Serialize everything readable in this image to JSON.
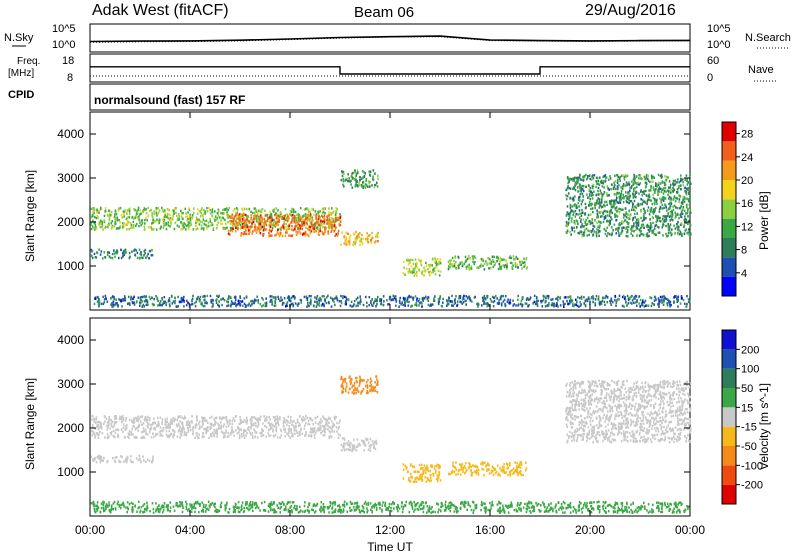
{
  "header": {
    "site": "Adak West (fitACF)",
    "beam": "Beam 06",
    "date": "29/Aug/2016"
  },
  "sky_panel": {
    "left_label": "N.Sky",
    "right_label": "N.Search",
    "left_ticks": [
      "10^5",
      "10^0"
    ],
    "right_ticks": [
      "10^5",
      "10^0"
    ]
  },
  "freq_panel": {
    "left_label_line1": "Freq.",
    "left_label_line2": "[MHz]",
    "right_label": "Nave",
    "left_ticks": [
      "18",
      "8"
    ],
    "right_ticks": [
      "60",
      "0"
    ]
  },
  "cpid": {
    "label": "CPID",
    "value": "normalsound (fast) 157 RF"
  },
  "x_axis": {
    "label": "Time UT",
    "ticks": [
      "00:00",
      "04:00",
      "08:00",
      "12:00",
      "16:00",
      "20:00",
      "00:00"
    ]
  },
  "colors": {
    "power": [
      "#0000ff",
      "#1f4fb0",
      "#2e7d5a",
      "#3aa845",
      "#8ccf3f",
      "#f2d21b",
      "#f59b1a",
      "#f0601a",
      "#e00000"
    ],
    "velocity": [
      "#e00000",
      "#f04a10",
      "#f58a1a",
      "#f7b81c",
      "#c8c8c8",
      "#3aa845",
      "#2e7d5a",
      "#1f4fb0",
      "#1010d0"
    ]
  },
  "chart_data": [
    {
      "type": "line",
      "panel": "sky-noise",
      "ylabel": "N.Sky",
      "ylabel_right": "N.Search",
      "ylim": [
        1,
        100000
      ],
      "ylog": true,
      "x": [
        0,
        2,
        4,
        6,
        8,
        10,
        12,
        14,
        16,
        18,
        20,
        22,
        24
      ],
      "series": [
        {
          "name": "N.Sky",
          "values": [
            60,
            70,
            80,
            110,
            200,
            400,
            600,
            800,
            120,
            90,
            80,
            90,
            100
          ]
        },
        {
          "name": "N.Search",
          "values": [
            40,
            50,
            60,
            80,
            150,
            300,
            500,
            600,
            90,
            70,
            60,
            70,
            80
          ]
        }
      ]
    },
    {
      "type": "line",
      "panel": "frequency",
      "ylabel": "Freq. [MHz]",
      "ylabel_right": "Nave",
      "ylim": [
        8,
        18
      ],
      "x": [
        0,
        10,
        10,
        14,
        14.3,
        18,
        18,
        24
      ],
      "series": [
        {
          "name": "Freq.",
          "values": [
            13.5,
            13.5,
            10.5,
            10.5,
            10.5,
            10.5,
            13.5,
            13.5
          ]
        },
        {
          "name": "Nave",
          "values": [
            10,
            10,
            10,
            10,
            10,
            10,
            10,
            10
          ]
        }
      ]
    },
    {
      "type": "heatmap",
      "panel": "power",
      "ylabel": "Slant Range [km]",
      "xlabel": "",
      "xlim": [
        0,
        24
      ],
      "ylim": [
        0,
        4500
      ],
      "y_ticks": [
        1000,
        2000,
        3000,
        4000
      ],
      "colorbar": {
        "label": "Power [dB]",
        "ticks": [
          4,
          8,
          12,
          16,
          20,
          24,
          28
        ],
        "range": [
          0,
          30
        ]
      },
      "scatter_bands": [
        {
          "t0": 0,
          "t1": 10,
          "r0": 1850,
          "r1": 2350,
          "level": 14
        },
        {
          "t0": 5.5,
          "t1": 10,
          "r0": 1700,
          "r1": 2200,
          "level": 24
        },
        {
          "t0": 0,
          "t1": 2.5,
          "r0": 1200,
          "r1": 1400,
          "level": 9
        },
        {
          "t0": 10,
          "t1": 11.5,
          "r0": 1500,
          "r1": 1800,
          "level": 20
        },
        {
          "t0": 10,
          "t1": 11.5,
          "r0": 2800,
          "r1": 3200,
          "level": 11
        },
        {
          "t0": 12.5,
          "t1": 14,
          "r0": 800,
          "r1": 1200,
          "level": 16
        },
        {
          "t0": 14.3,
          "t1": 17.5,
          "r0": 950,
          "r1": 1250,
          "level": 13
        },
        {
          "t0": 19,
          "t1": 24,
          "r0": 1700,
          "r1": 3100,
          "level": 10
        },
        {
          "t0": 0,
          "t1": 24,
          "r0": 100,
          "r1": 350,
          "level": 7
        }
      ]
    },
    {
      "type": "heatmap",
      "panel": "velocity",
      "ylabel": "Slant Range [km]",
      "xlabel": "Time UT",
      "xlim": [
        0,
        24
      ],
      "ylim": [
        0,
        4500
      ],
      "y_ticks": [
        1000,
        2000,
        3000,
        4000
      ],
      "colorbar": {
        "label": "Velocity [m s^-1]",
        "ticks": [
          -200,
          -100,
          -50,
          -15,
          15,
          50,
          100,
          200
        ],
        "range": [
          -250,
          250
        ]
      },
      "scatter_bands": [
        {
          "t0": 0,
          "t1": 10,
          "r0": 1800,
          "r1": 2300,
          "level": 0
        },
        {
          "t0": 0,
          "t1": 2.5,
          "r0": 1250,
          "r1": 1400,
          "level": 0
        },
        {
          "t0": 10,
          "t1": 11.5,
          "r0": 1500,
          "r1": 1800,
          "level": 0
        },
        {
          "t0": 10,
          "t1": 11.5,
          "r0": 2800,
          "r1": 3200,
          "level": -60
        },
        {
          "t0": 12.5,
          "t1": 14,
          "r0": 800,
          "r1": 1200,
          "level": -40
        },
        {
          "t0": 14.3,
          "t1": 17.5,
          "r0": 950,
          "r1": 1250,
          "level": -30
        },
        {
          "t0": 19,
          "t1": 24,
          "r0": 1700,
          "r1": 3100,
          "level": 0
        },
        {
          "t0": 0,
          "t1": 24,
          "r0": 100,
          "r1": 350,
          "level": 30
        }
      ]
    }
  ]
}
